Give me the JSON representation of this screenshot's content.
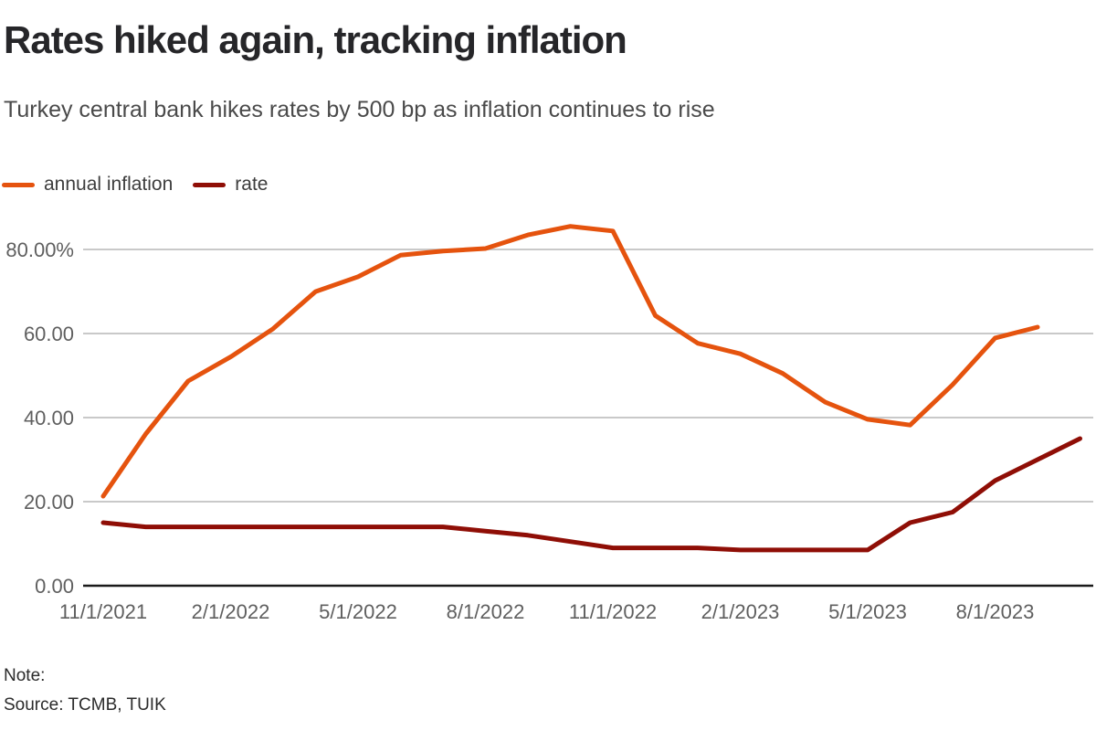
{
  "header": {
    "title": "Rates hiked again, tracking inflation",
    "subtitle": "Turkey central bank hikes rates by 500 bp as inflation continues to rise"
  },
  "footer": {
    "note_label": "Note:",
    "source": "Source: TCMB, TUIK"
  },
  "colors": {
    "inflation": "#e5530e",
    "rate": "#8f0e06",
    "grid": "#c9c9c9",
    "axis": "#1a1a1a",
    "tick_text": "#5f5f5f"
  },
  "chart_data": {
    "type": "line",
    "title": "Rates hiked again, tracking inflation",
    "subtitle": "Turkey central bank hikes rates by 500 bp as inflation continues to rise",
    "xlabel": "",
    "ylabel": "",
    "grid": true,
    "legend_position": "top-left",
    "ylim": [
      0,
      88
    ],
    "x": [
      "11/1/2021",
      "12/1/2021",
      "1/1/2022",
      "2/1/2022",
      "3/1/2022",
      "4/1/2022",
      "5/1/2022",
      "6/1/2022",
      "7/1/2022",
      "8/1/2022",
      "9/1/2022",
      "10/1/2022",
      "11/1/2022",
      "12/1/2022",
      "1/1/2023",
      "2/1/2023",
      "3/1/2023",
      "4/1/2023",
      "5/1/2023",
      "6/1/2023",
      "7/1/2023",
      "8/1/2023",
      "9/1/2023",
      "10/1/2023"
    ],
    "xtick_indices": [
      0,
      3,
      6,
      9,
      12,
      15,
      18,
      21
    ],
    "yticks": [
      {
        "value": 0,
        "label": "0.00"
      },
      {
        "value": 20,
        "label": "20.00"
      },
      {
        "value": 40,
        "label": "40.00"
      },
      {
        "value": 60,
        "label": "60.00"
      },
      {
        "value": 80,
        "label": "80.00%"
      }
    ],
    "series": [
      {
        "name": "annual inflation",
        "color": "#e5530e",
        "values": [
          21.31,
          36.08,
          48.69,
          54.44,
          61.14,
          69.97,
          73.5,
          78.62,
          79.6,
          80.21,
          83.45,
          85.51,
          84.39,
          64.27,
          57.68,
          55.18,
          50.51,
          43.68,
          39.59,
          38.21,
          47.83,
          58.94,
          61.53,
          null
        ]
      },
      {
        "name": "rate",
        "color": "#8f0e06",
        "values": [
          15,
          14,
          14,
          14,
          14,
          14,
          14,
          14,
          14,
          13,
          12,
          10.5,
          9,
          9,
          9,
          8.5,
          8.5,
          8.5,
          8.5,
          15,
          17.5,
          25,
          30,
          35
        ]
      }
    ]
  }
}
